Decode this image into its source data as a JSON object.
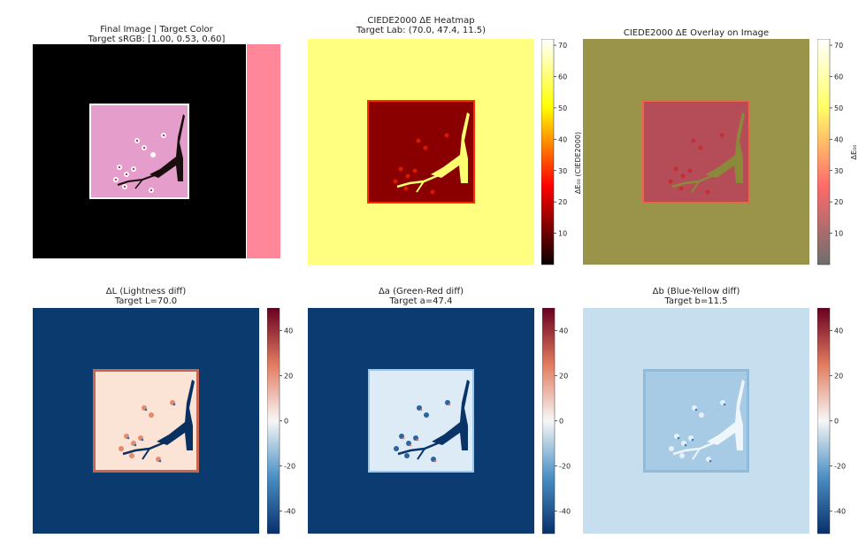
{
  "panels": {
    "final": {
      "title": "Final Image | Target Color",
      "subtitle": "Target sRGB: [1.00, 0.53, 0.60]",
      "target_swatch_color": "#ff8799",
      "background_color": "#000000",
      "image_bg_color": "#e59dcc"
    },
    "heatmap": {
      "title": "CIEDE2000 ΔE Heatmap",
      "subtitle": "Target Lab: (70.0, 47.4, 11.5)",
      "colorbar_label": "ΔE₀₀ (CIEDE2000)"
    },
    "overlay": {
      "title": "CIEDE2000 ΔE Overlay on Image",
      "colorbar_label": "ΔE₀₀"
    },
    "dL": {
      "title": "ΔL (Lightness diff)",
      "subtitle": "Target L=70.0"
    },
    "da": {
      "title": "Δa (Green-Red diff)",
      "subtitle": "Target a=47.4"
    },
    "db": {
      "title": "Δb (Blue-Yellow diff)",
      "subtitle": "Target b=11.5"
    }
  },
  "chart_data": [
    {
      "type": "heatmap",
      "title": "CIEDE2000 ΔE Heatmap",
      "colorbar_label": "ΔE₀₀ (CIEDE2000)",
      "colorbar_ticks": [
        10,
        20,
        30,
        40,
        50,
        60,
        70
      ],
      "colorbar_range": [
        0,
        72
      ],
      "colormap": "hot",
      "background_value": 72,
      "square_value": 25,
      "branch_value": 65
    },
    {
      "type": "heatmap",
      "title": "CIEDE2000 ΔE Overlay on Image",
      "colorbar_label": "ΔE₀₀",
      "colorbar_ticks": [
        10,
        20,
        30,
        40,
        50,
        60,
        70
      ],
      "colorbar_range": [
        0,
        72
      ],
      "colormap": "hot-overlay"
    },
    {
      "type": "heatmap",
      "title": "ΔL (Lightness diff)",
      "colorbar_ticks": [
        -40,
        -20,
        0,
        20,
        40
      ],
      "colorbar_range": [
        -50,
        50
      ],
      "colormap": "RdBu_r"
    },
    {
      "type": "heatmap",
      "title": "Δa (Green-Red diff)",
      "colorbar_ticks": [
        -40,
        -20,
        0,
        20,
        40
      ],
      "colorbar_range": [
        -50,
        50
      ],
      "colormap": "RdBu_r"
    },
    {
      "type": "heatmap",
      "title": "Δb (Blue-Yellow diff)",
      "colorbar_ticks": [
        -40,
        -20,
        0,
        20,
        40
      ],
      "colorbar_range": [
        -50,
        50
      ],
      "colormap": "RdBu_r"
    }
  ]
}
